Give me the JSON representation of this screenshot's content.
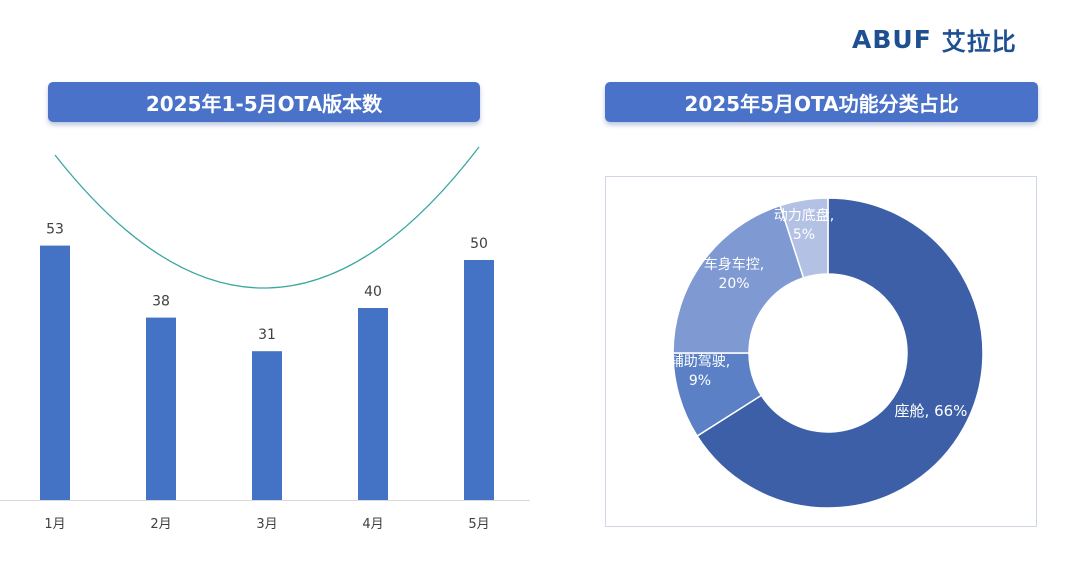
{
  "brand": {
    "logo_text": "ABUF",
    "logo_cn": "艾拉比"
  },
  "left_panel": {
    "title": "2025年1-5月OTA版本数"
  },
  "right_panel": {
    "title": "2025年5月OTA功能分类占比"
  },
  "colors": {
    "bar": "#4472c4",
    "trend": "#3aa8a0",
    "pill": "#4a72c8",
    "slices": [
      "#3c5fa8",
      "#5b80c6",
      "#7f99d3",
      "#b3c1e4"
    ]
  },
  "chart_data": [
    {
      "type": "bar",
      "title": "2025年1-5月OTA版本数",
      "categories": [
        "1月",
        "2月",
        "3月",
        "4月",
        "5月"
      ],
      "values": [
        53,
        38,
        31,
        40,
        50
      ],
      "ylim": [
        0,
        60
      ],
      "trendline": "polynomial",
      "grid": false
    },
    {
      "type": "pie",
      "style": "donut",
      "title": "2025年5月OTA功能分类占比",
      "slices": [
        {
          "name": "座舱",
          "value": 66,
          "label": "座舱, 66%"
        },
        {
          "name": "辅助驾驶",
          "value": 9,
          "label_line1": "辅助驾驶,",
          "label_line2": "9%"
        },
        {
          "name": "车身车控",
          "value": 20,
          "label_line1": "车身车控,",
          "label_line2": "20%"
        },
        {
          "name": "动力底盘",
          "value": 5,
          "label_line1": "动力底盘,",
          "label_line2": "5%"
        }
      ]
    }
  ]
}
